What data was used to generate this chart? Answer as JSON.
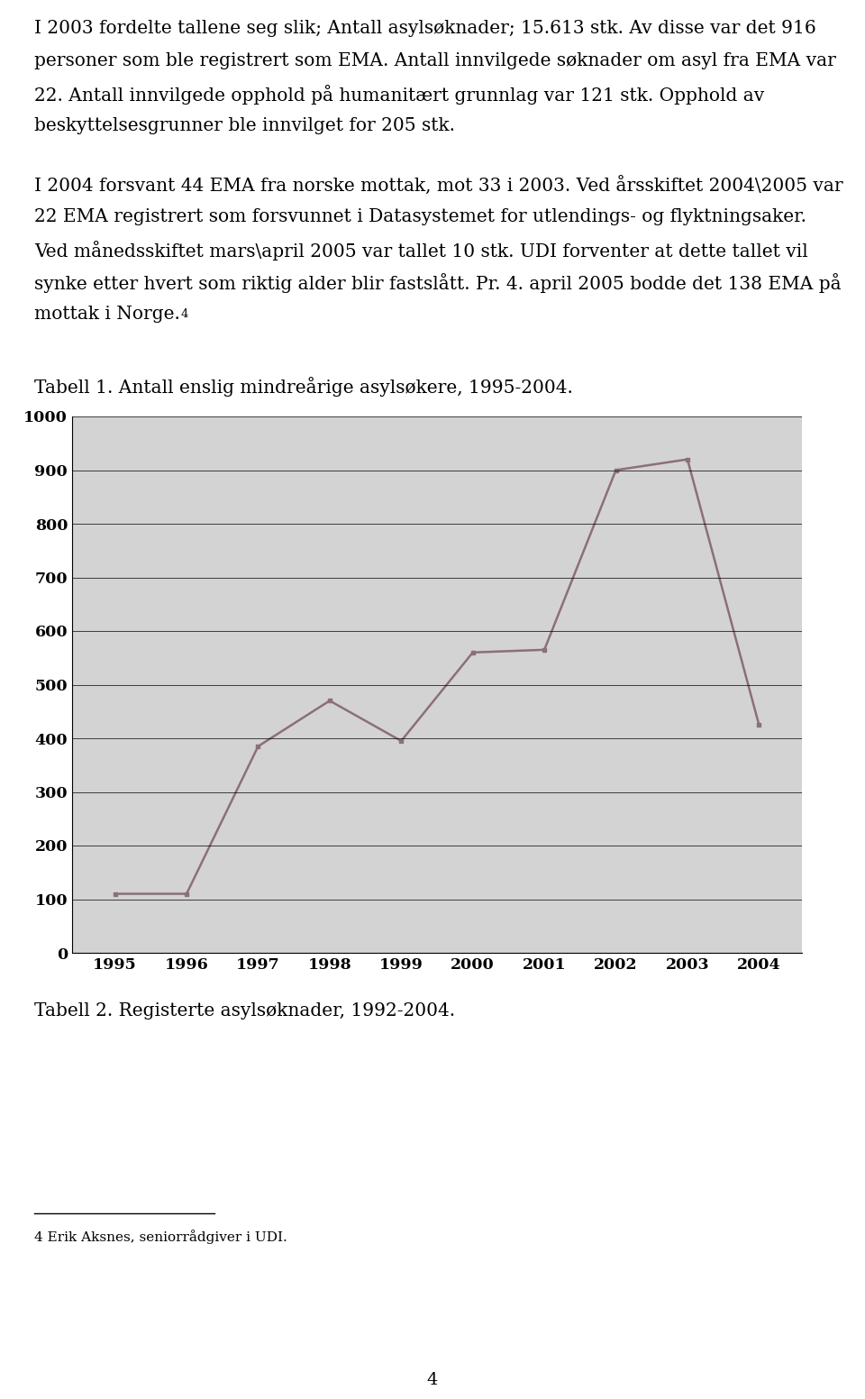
{
  "chart_years": [
    1995,
    1996,
    1997,
    1998,
    1999,
    2000,
    2001,
    2002,
    2003,
    2004
  ],
  "chart_values": [
    110,
    110,
    385,
    470,
    395,
    560,
    565,
    900,
    920,
    425
  ],
  "chart_ylim": [
    0,
    1000
  ],
  "chart_yticks": [
    0,
    100,
    200,
    300,
    400,
    500,
    600,
    700,
    800,
    900,
    1000
  ],
  "chart_line_color": "#8B6F7A",
  "chart_bg_color": "#D3D3D3",
  "line1": "I 2003 fordelte tallene seg slik; Antall asylsøknader; 15.613 stk. Av disse var det 916",
  "line2": "personer som ble registrert som EMA. Antall innvilgede søknader om asyl fra EMA var",
  "line3": "22. Antall innvilgede opphold på humanitært grunnlag var 121 stk. Opphold av",
  "line4": "beskyttelsesgrunner ble innvilget for 205 stk.",
  "line5": "I 2004 forsvant 44 EMA fra norske mottak, mot 33 i 2003. Ved årsskiftet 2004\\2005 var",
  "line6": "22 EMA registrert som forsvunnet i Datasystemet for utlendings- og flyktningsaker.",
  "line7": "Ved månedsskiftet mars\\april 2005 var tallet 10 stk. UDI forventer at dette tallet vil",
  "line8a": "synke etter hvert som riktig alder blir fastslått. Pr. 4. april 2005 bodde det 138 EMA på",
  "line9": "mottak i Norge.",
  "superscript_4_text": "4",
  "tabell1": "Tabell 1. Antall enslig mindreårige asylsøkere, 1995-2004.",
  "tabell2": "Tabell 2. Registerte asylsøknader, 1992-2004.",
  "footnote": "4 Erik Aksnes, seniorrådgiver i UDI.",
  "page_num": "4",
  "fs": 14.5,
  "fs_small": 11.0,
  "lh": 36
}
